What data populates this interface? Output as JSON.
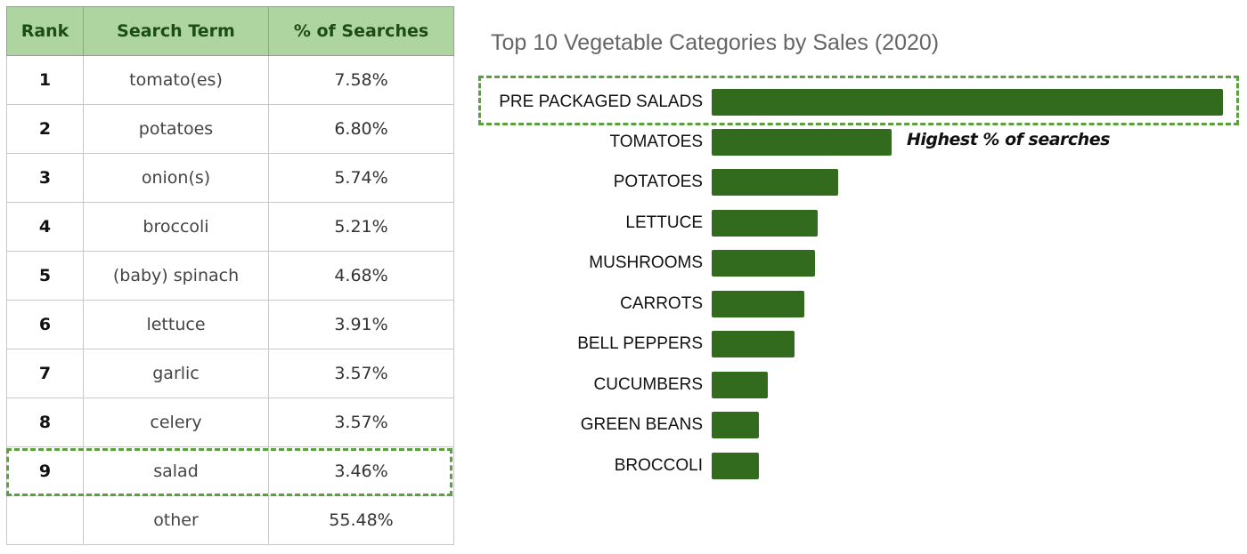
{
  "table": {
    "headers": [
      "Rank",
      "Search Term",
      "% of Searches"
    ],
    "rows": [
      {
        "rank": "1",
        "term": "tomato(es)",
        "pct": "7.58%"
      },
      {
        "rank": "2",
        "term": "potatoes",
        "pct": "6.80%"
      },
      {
        "rank": "3",
        "term": "onion(s)",
        "pct": "5.74%"
      },
      {
        "rank": "4",
        "term": "broccoli",
        "pct": "5.21%"
      },
      {
        "rank": "5",
        "term": "(baby) spinach",
        "pct": "4.68%"
      },
      {
        "rank": "6",
        "term": "lettuce",
        "pct": "3.91%"
      },
      {
        "rank": "7",
        "term": "garlic",
        "pct": "3.57%"
      },
      {
        "rank": "8",
        "term": "celery",
        "pct": "3.57%"
      },
      {
        "rank": "9",
        "term": "salad",
        "pct": "3.46%"
      },
      {
        "rank": "",
        "term": "other",
        "pct": "55.48%"
      }
    ],
    "highlighted_row_index": 8
  },
  "colors": {
    "header_bg": "#aed49f",
    "header_text": "#1d4d16",
    "bar": "#336b1e",
    "highlight_dash": "#5aa03e"
  },
  "annotation": "Highest % of searches",
  "chart_data": [
    {
      "type": "table",
      "title": "",
      "columns": [
        "Rank",
        "Search Term",
        "% of Searches"
      ],
      "rows": [
        [
          "1",
          "tomato(es)",
          7.58
        ],
        [
          "2",
          "potatoes",
          6.8
        ],
        [
          "3",
          "onion(s)",
          5.74
        ],
        [
          "4",
          "broccoli",
          5.21
        ],
        [
          "5",
          "(baby) spinach",
          4.68
        ],
        [
          "6",
          "lettuce",
          3.91
        ],
        [
          "7",
          "garlic",
          3.57
        ],
        [
          "8",
          "celery",
          3.57
        ],
        [
          "9",
          "salad",
          3.46
        ],
        [
          "",
          "other",
          55.48
        ]
      ]
    },
    {
      "type": "bar",
      "orientation": "horizontal",
      "title": "Top 10 Vegetable Categories by Sales (2020)",
      "xlabel": "",
      "ylabel": "",
      "axis_visible": false,
      "grid": false,
      "value_units": "relative bar length (px), no axis shown",
      "categories": [
        "PRE PACKAGED SALADS",
        "TOMATOES",
        "POTATOES",
        "LETTUCE",
        "MUSHROOMS",
        "CARROTS",
        "BELL PEPPERS",
        "CUCUMBERS",
        "GREEN BEANS",
        "BROCCOLI"
      ],
      "values": [
        574,
        202,
        142,
        119,
        116,
        104,
        93,
        63,
        53,
        53
      ],
      "annotations": [
        {
          "target": "PRE PACKAGED SALADS",
          "type": "dashed-box"
        },
        {
          "target": "TOMATOES",
          "text": "Highest % of searches"
        }
      ]
    }
  ]
}
